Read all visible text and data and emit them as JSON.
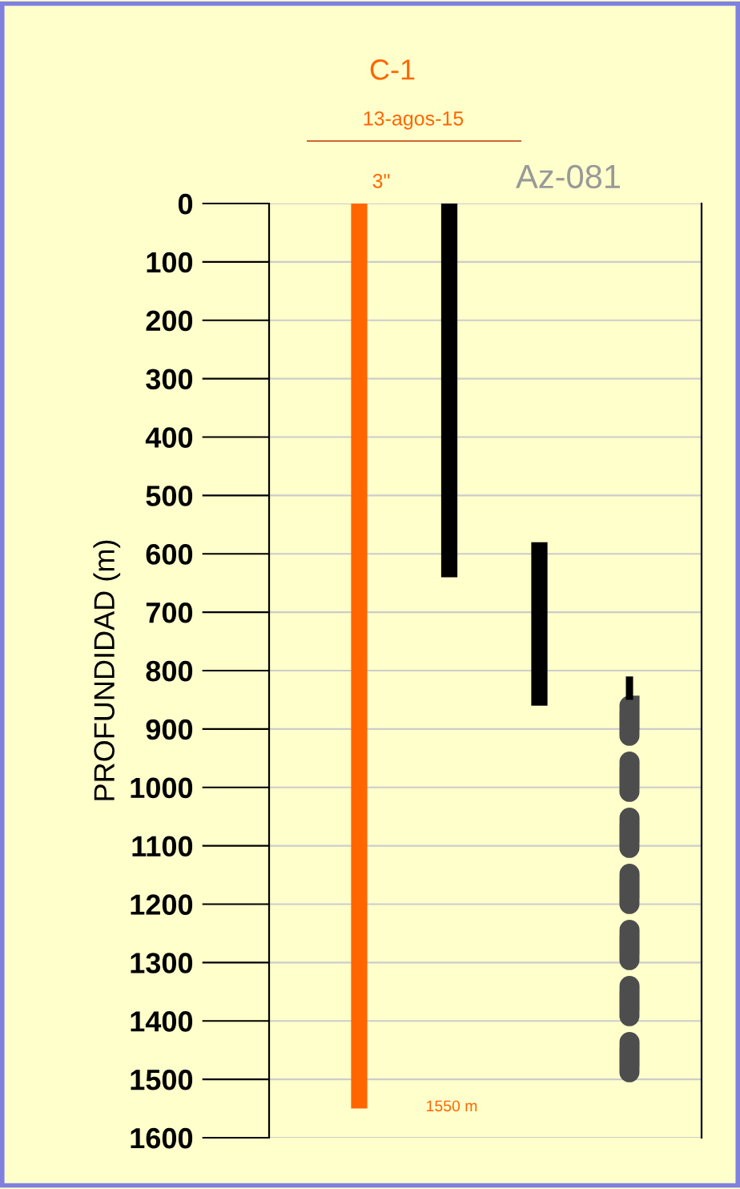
{
  "chart_data": {
    "type": "bar",
    "title": "C-1",
    "subtitle": "13-agos-15",
    "ylabel": "PROFUNDIDAD (m)",
    "categories": [
      null,
      null,
      null,
      null
    ],
    "series": [
      {
        "color": "#ff6600",
        "values": [
          1550,
          null,
          null,
          null
        ],
        "base": [
          0,
          null,
          null,
          null
        ]
      },
      {
        "color": "#000000",
        "values": [
          null,
          640,
          280,
          40
        ],
        "base": [
          null,
          0,
          580,
          810
        ]
      },
      {
        "color": "#4d4d4d",
        "values": [
          null,
          null,
          null,
          650
        ],
        "base": [
          null,
          null,
          null,
          860
        ],
        "line_style": "dashed"
      }
    ],
    "ylim": [
      1600,
      0
    ],
    "yticks": [
      0,
      100,
      200,
      300,
      400,
      500,
      600,
      700,
      800,
      900,
      1000,
      1100,
      1200,
      1300,
      1400,
      1500,
      1600
    ],
    "grid": "y",
    "tick_labels": "y",
    "annotations": [
      "3\"",
      "Az-081",
      "1550 m"
    ]
  }
}
